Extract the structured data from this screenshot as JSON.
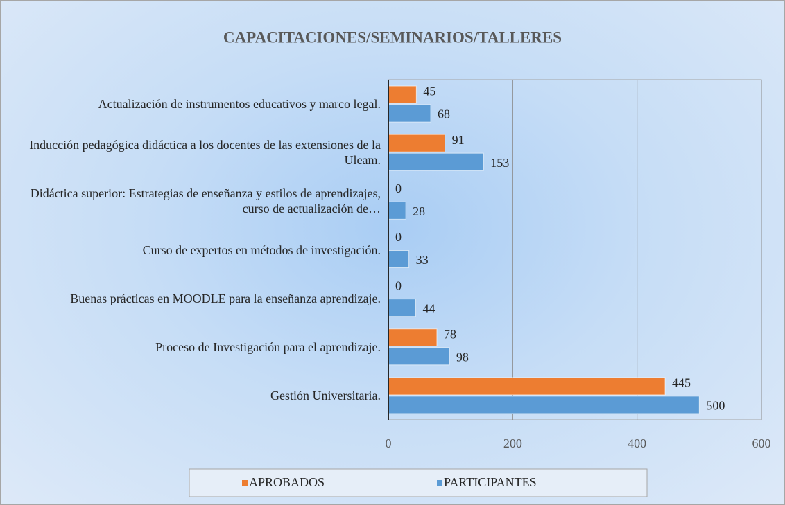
{
  "chart_data": {
    "type": "bar",
    "orientation": "horizontal",
    "title": "CAPACITACIONES/SEMINARIOS/TALLERES",
    "categories": [
      "Actualización de instrumentos educativos y marco legal.",
      "Inducción pedagógica didáctica a los docentes de las extensiones de la Uleam.",
      "Didáctica superior: Estrategias de enseñanza y estilos de aprendizajes, curso de actualización de…",
      "Curso de expertos en métodos de investigación.",
      "Buenas prácticas en MOODLE para la enseñanza aprendizaje.",
      "Proceso de Investigación para el aprendizaje.",
      "Gestión Universitaria."
    ],
    "series": [
      {
        "name": "APROBADOS",
        "color": "#ed7d31",
        "values": [
          45,
          91,
          0,
          0,
          0,
          78,
          445
        ]
      },
      {
        "name": "PARTICIPANTES",
        "color": "#5b9bd5",
        "values": [
          68,
          153,
          28,
          33,
          44,
          98,
          500
        ]
      }
    ],
    "xlim": [
      0,
      600
    ],
    "xticks": [
      0,
      200,
      400,
      600
    ],
    "grid": true,
    "legend": "bottom"
  }
}
